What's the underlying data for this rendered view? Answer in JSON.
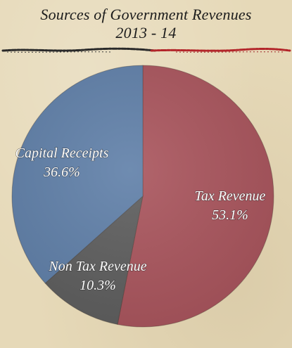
{
  "chart_data": {
    "type": "pie",
    "title_lines": [
      "Sources of Government Revenues",
      "2013 - 14"
    ],
    "slices": [
      {
        "label": "Tax Revenue",
        "value": 53.1,
        "display": "53.1%",
        "color": "#a9545c"
      },
      {
        "label": "Non Tax Revenue",
        "value": 10.3,
        "display": "10.3%",
        "color": "#5d5d5d"
      },
      {
        "label": "Capital Receipts",
        "value": 36.6,
        "display": "36.6%",
        "color": "#5f7fa8"
      }
    ],
    "start": "12 o'clock",
    "direction": "clockwise"
  }
}
